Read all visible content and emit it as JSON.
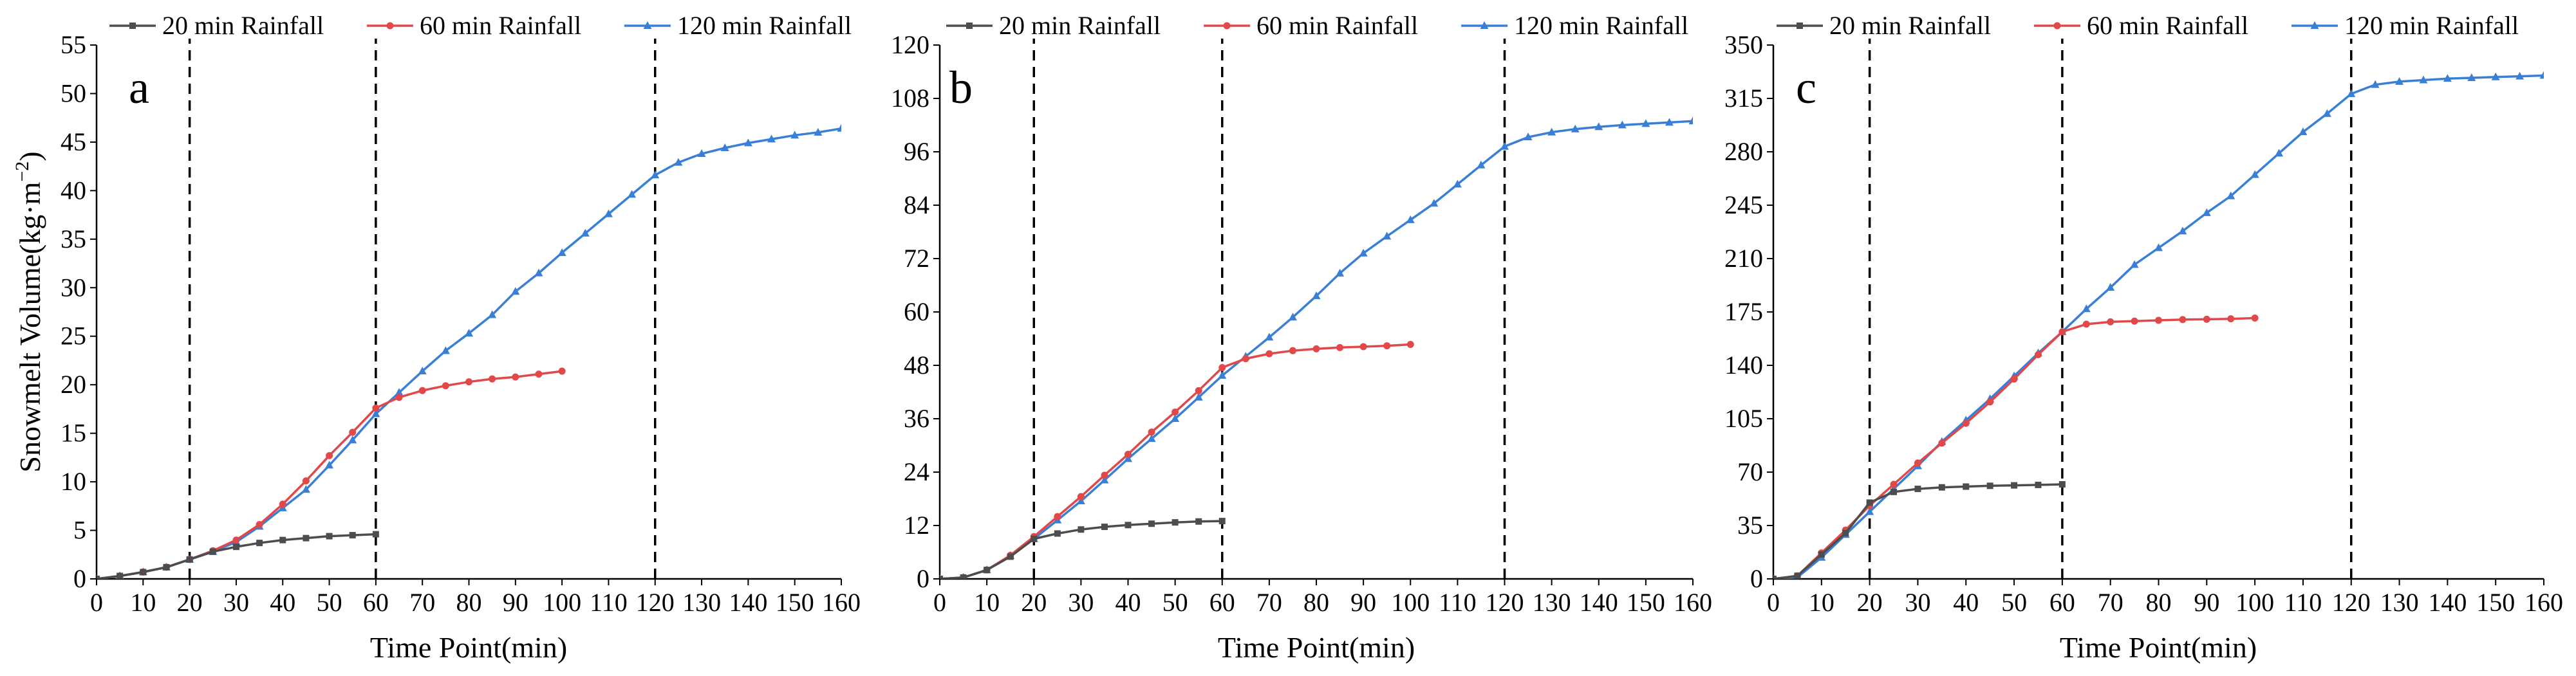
{
  "figure": {
    "ylabel_main": "Snowmelt Volume(kg·m",
    "ylabel_sup": "−2",
    "ylabel_close": ")"
  },
  "legend": {
    "s20": "20 min Rainfall",
    "s60": "60 min Rainfall",
    "s120": "120 min Rainfall"
  },
  "colors": {
    "s20": "#4d4d4d",
    "s60": "#e0484a",
    "s120": "#3a7fd6"
  },
  "chart_data": [
    {
      "type": "line",
      "panel": "a",
      "xlabel": "Time Point(min)",
      "ylabel": "Snowmelt Volume(kg·m−2)",
      "xlim": [
        0,
        160
      ],
      "ylim": [
        0,
        55
      ],
      "xticks": [
        0,
        10,
        20,
        30,
        40,
        50,
        60,
        70,
        80,
        90,
        100,
        110,
        120,
        130,
        140,
        150,
        160
      ],
      "yticks": [
        0,
        5,
        10,
        15,
        20,
        25,
        30,
        35,
        40,
        45,
        50,
        55
      ],
      "vlines": [
        20,
        60,
        120
      ],
      "series": [
        {
          "key": "s20",
          "name": "20 min Rainfall",
          "x": [
            0,
            5,
            10,
            15,
            20,
            25,
            30,
            35,
            40,
            45,
            50,
            55,
            60
          ],
          "y": [
            0,
            0.3,
            0.7,
            1.2,
            2.0,
            2.8,
            3.3,
            3.7,
            4.0,
            4.2,
            4.4,
            4.5,
            4.6
          ]
        },
        {
          "key": "s60",
          "name": "60 min Rainfall",
          "x": [
            0,
            5,
            10,
            15,
            20,
            25,
            30,
            35,
            40,
            45,
            50,
            55,
            60,
            65,
            70,
            75,
            80,
            85,
            90,
            95,
            100
          ],
          "y": [
            0,
            0.3,
            0.7,
            1.2,
            2.0,
            2.9,
            4.0,
            5.6,
            7.7,
            10.1,
            12.7,
            15.1,
            17.6,
            18.7,
            19.4,
            19.9,
            20.3,
            20.6,
            20.8,
            21.1,
            21.4
          ]
        },
        {
          "key": "s120",
          "name": "120 min Rainfall",
          "x": [
            0,
            5,
            10,
            15,
            20,
            25,
            30,
            35,
            40,
            45,
            50,
            55,
            60,
            65,
            70,
            75,
            80,
            85,
            90,
            95,
            100,
            105,
            110,
            115,
            120,
            125,
            130,
            135,
            140,
            145,
            150,
            155,
            160
          ],
          "y": [
            0,
            0.3,
            0.7,
            1.2,
            2.0,
            2.8,
            3.8,
            5.4,
            7.3,
            9.2,
            11.7,
            14.3,
            17.0,
            19.2,
            21.4,
            23.5,
            25.3,
            27.2,
            29.6,
            31.5,
            33.6,
            35.6,
            37.6,
            39.6,
            41.6,
            42.9,
            43.8,
            44.4,
            44.9,
            45.3,
            45.7,
            46.0,
            46.4
          ]
        }
      ]
    },
    {
      "type": "line",
      "panel": "b",
      "xlabel": "Time Point(min)",
      "ylabel": "",
      "xlim": [
        0,
        160
      ],
      "ylim": [
        0,
        120
      ],
      "xticks": [
        0,
        10,
        20,
        30,
        40,
        50,
        60,
        70,
        80,
        90,
        100,
        110,
        120,
        130,
        140,
        150,
        160
      ],
      "yticks": [
        0,
        12,
        24,
        36,
        48,
        60,
        72,
        84,
        96,
        108,
        120
      ],
      "vlines": [
        20,
        60,
        120
      ],
      "series": [
        {
          "key": "s20",
          "name": "20 min Rainfall",
          "x": [
            0,
            5,
            10,
            15,
            20,
            25,
            30,
            35,
            40,
            45,
            50,
            55,
            60
          ],
          "y": [
            0,
            0.3,
            2.0,
            5.0,
            9.0,
            10.2,
            11.1,
            11.7,
            12.1,
            12.4,
            12.7,
            12.9,
            13.0
          ]
        },
        {
          "key": "s60",
          "name": "60 min Rainfall",
          "x": [
            0,
            5,
            10,
            15,
            20,
            25,
            30,
            35,
            40,
            45,
            50,
            55,
            60,
            65,
            70,
            75,
            80,
            85,
            90,
            95,
            100
          ],
          "y": [
            0,
            0.3,
            2.0,
            5.3,
            9.5,
            14.0,
            18.5,
            23.3,
            28.0,
            33.0,
            37.5,
            42.3,
            47.5,
            49.5,
            50.6,
            51.3,
            51.7,
            52.0,
            52.2,
            52.4,
            52.7
          ]
        },
        {
          "key": "s120",
          "name": "120 min Rainfall",
          "x": [
            0,
            5,
            10,
            15,
            20,
            25,
            30,
            35,
            40,
            45,
            50,
            55,
            60,
            65,
            70,
            75,
            80,
            85,
            90,
            95,
            100,
            105,
            110,
            115,
            120,
            125,
            130,
            135,
            140,
            145,
            150,
            155,
            160
          ],
          "y": [
            0,
            0.3,
            2.0,
            5.2,
            9.0,
            13.2,
            17.5,
            22.2,
            27.0,
            31.5,
            36.0,
            40.8,
            45.7,
            50.0,
            54.3,
            58.8,
            63.6,
            68.7,
            73.2,
            77.0,
            80.7,
            84.4,
            88.7,
            93.0,
            97.2,
            99.3,
            100.4,
            101.1,
            101.6,
            102.0,
            102.3,
            102.6,
            102.9
          ]
        }
      ]
    },
    {
      "type": "line",
      "panel": "c",
      "xlabel": "Time Point(min)",
      "ylabel": "",
      "xlim": [
        0,
        160
      ],
      "ylim": [
        0,
        350
      ],
      "xticks": [
        0,
        10,
        20,
        30,
        40,
        50,
        60,
        70,
        80,
        90,
        100,
        110,
        120,
        130,
        140,
        150,
        160
      ],
      "yticks": [
        0,
        35,
        70,
        105,
        140,
        175,
        210,
        245,
        280,
        315,
        350
      ],
      "vlines": [
        20,
        60,
        120
      ],
      "series": [
        {
          "key": "s20",
          "name": "20 min Rainfall",
          "x": [
            0,
            5,
            10,
            15,
            20,
            25,
            30,
            35,
            40,
            45,
            50,
            55,
            60
          ],
          "y": [
            0,
            2,
            16,
            30,
            50,
            57,
            59,
            60,
            60.5,
            61,
            61.3,
            61.6,
            62
          ]
        },
        {
          "key": "s60",
          "name": "60 min Rainfall",
          "x": [
            0,
            5,
            10,
            15,
            20,
            25,
            30,
            35,
            40,
            45,
            50,
            55,
            60,
            65,
            70,
            75,
            80,
            85,
            90,
            95,
            100
          ],
          "y": [
            0,
            2,
            17,
            32,
            48,
            62,
            76,
            89,
            102,
            116,
            131,
            147,
            162,
            167,
            168.5,
            169,
            169.5,
            170,
            170.2,
            170.5,
            171
          ]
        },
        {
          "key": "s120",
          "name": "120 min Rainfall",
          "x": [
            0,
            5,
            10,
            15,
            20,
            25,
            30,
            35,
            40,
            45,
            50,
            55,
            60,
            65,
            70,
            75,
            80,
            85,
            90,
            95,
            100,
            105,
            110,
            115,
            120,
            125,
            130,
            135,
            140,
            145,
            150,
            155,
            160
          ],
          "y": [
            0,
            1,
            14,
            29,
            44,
            59,
            74,
            90,
            104,
            118,
            133,
            148,
            162,
            177,
            191,
            206,
            217,
            228,
            240,
            251,
            265,
            279,
            293,
            305,
            318,
            324,
            326,
            327,
            328,
            328.5,
            329,
            329.5,
            330
          ]
        }
      ]
    }
  ]
}
